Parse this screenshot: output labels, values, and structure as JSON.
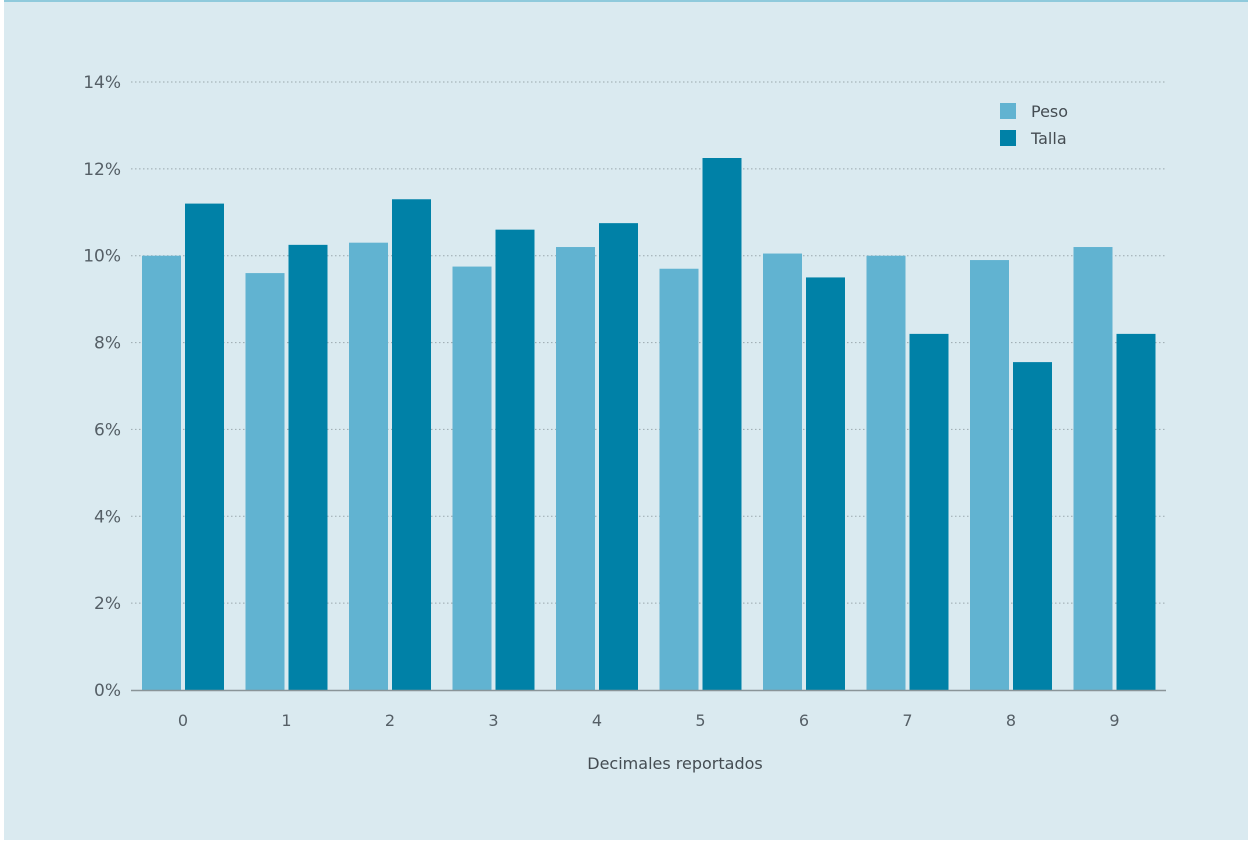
{
  "chart_data": {
    "type": "bar",
    "title": "",
    "xlabel": "Decimales reportados",
    "ylabel": "",
    "categories": [
      "0",
      "1",
      "2",
      "3",
      "4",
      "5",
      "6",
      "7",
      "8",
      "9"
    ],
    "series": [
      {
        "name": "Peso",
        "color": "#61b3d1",
        "values": [
          10.0,
          9.6,
          10.3,
          9.75,
          10.2,
          9.7,
          10.05,
          10.0,
          9.9,
          10.2
        ]
      },
      {
        "name": "Talla",
        "color": "#0081a7",
        "values": [
          11.2,
          10.25,
          11.3,
          10.6,
          10.75,
          12.25,
          9.5,
          8.2,
          7.55,
          8.2
        ]
      }
    ],
    "ylim": [
      0,
      14
    ],
    "yticks": [
      "0%",
      "2%",
      "4%",
      "6%",
      "8%",
      "10%",
      "12%",
      "14%"
    ],
    "grid": true,
    "legend_position": "top-right",
    "colors": {
      "background": "#daeaf0",
      "gridline": "#9aa8ad",
      "axis": "#8a9498"
    }
  }
}
